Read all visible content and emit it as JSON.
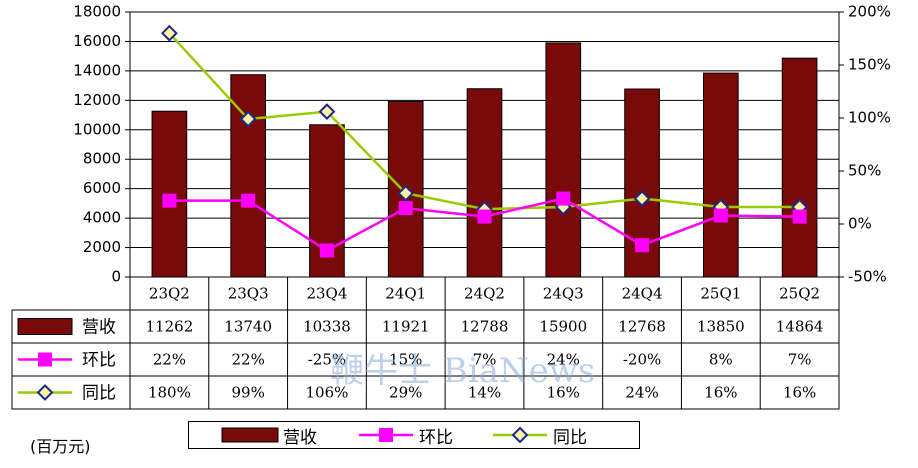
{
  "chart_data": {
    "type": "bar",
    "categories": [
      "23Q2",
      "23Q3",
      "23Q4",
      "24Q1",
      "24Q2",
      "24Q3",
      "24Q4",
      "25Q1",
      "25Q2"
    ],
    "series": [
      {
        "name": "营收",
        "kind": "bar",
        "axis": "left",
        "color": "#7a0a0a",
        "values": [
          11262,
          13740,
          10338,
          11921,
          12788,
          15900,
          12768,
          13850,
          14864
        ],
        "labels": [
          "11262",
          "13740",
          "10338",
          "11921",
          "12788",
          "15900",
          "12768",
          "13850",
          "14864"
        ]
      },
      {
        "name": "环比",
        "kind": "line",
        "axis": "right",
        "color": "#ff00ff",
        "marker": "square",
        "values": [
          22,
          22,
          -25,
          15,
          7,
          24,
          -20,
          8,
          7
        ],
        "labels": [
          "22%",
          "22%",
          "-25%",
          "15%",
          "7%",
          "24%",
          "-20%",
          "8%",
          "7%"
        ]
      },
      {
        "name": "同比",
        "kind": "line",
        "axis": "right",
        "color": "#99cc00",
        "marker": "diamond",
        "values": [
          180,
          99,
          106,
          29,
          14,
          16,
          24,
          16,
          16
        ],
        "labels": [
          "180%",
          "99%",
          "106%",
          "29%",
          "14%",
          "16%",
          "24%",
          "16%",
          "16%"
        ]
      }
    ],
    "y_left": {
      "min": 0,
      "max": 18000,
      "step": 2000,
      "ticks": [
        "0",
        "2000",
        "4000",
        "6000",
        "8000",
        "10000",
        "12000",
        "14000",
        "16000",
        "18000"
      ]
    },
    "y_right": {
      "min": -50,
      "max": 200,
      "step": 50,
      "ticks": [
        "-50%",
        "0%",
        "50%",
        "100%",
        "150%",
        "200%"
      ]
    },
    "grid": true,
    "legend_position": "bottom",
    "unit_label": "(百万元)",
    "watermark": "鞭牛士 BiaNews"
  }
}
